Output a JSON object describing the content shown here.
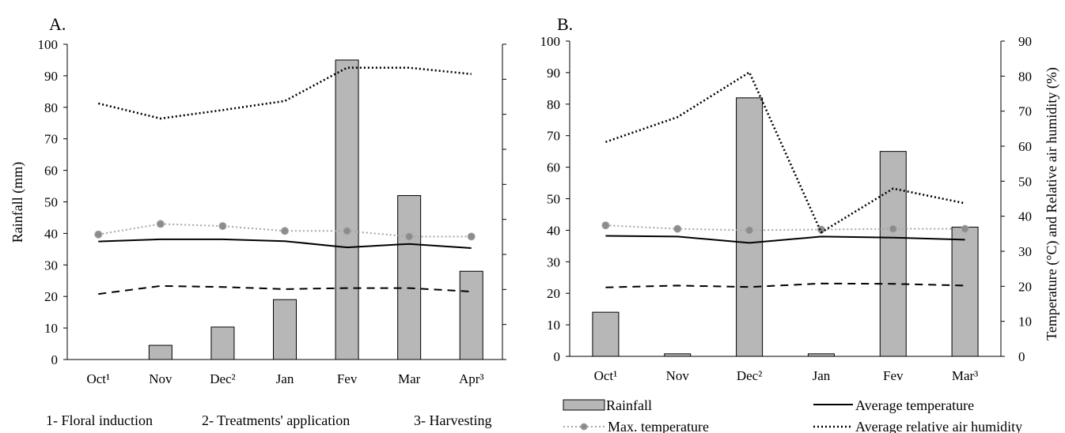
{
  "chart_data": [
    {
      "id": "A",
      "type": "bar+line",
      "panel_label": "A.",
      "categories": [
        "Oct¹",
        "Nov",
        "Dec²",
        "Jan",
        "Fev",
        "Mar",
        "Apr³"
      ],
      "ylabel": "Rainfall (mm)",
      "ylim": [
        0,
        100
      ],
      "yticks": [
        0,
        10,
        20,
        30,
        40,
        50,
        60,
        70,
        80,
        90,
        100
      ],
      "y2lim": [
        0,
        90
      ],
      "grid": false,
      "series": [
        {
          "name": "Rainfall",
          "type": "bar",
          "axis": "left",
          "values": [
            0,
            4.5,
            10.3,
            19,
            95,
            52,
            28
          ]
        },
        {
          "name": "Average temperature",
          "type": "line",
          "style": "solid",
          "axis": "right",
          "values": [
            33.7,
            34.3,
            34.3,
            33.8,
            32.0,
            33.0,
            31.8
          ]
        },
        {
          "name": "Max. temperature",
          "type": "line",
          "style": "dotted-marker",
          "axis": "right",
          "values": [
            35.7,
            38.7,
            38.1,
            36.7,
            36.7,
            35.1,
            35.1
          ]
        },
        {
          "name": "",
          "type": "line",
          "style": "dashed",
          "axis": "right",
          "values": [
            18.7,
            21.0,
            20.7,
            20.1,
            20.4,
            20.4,
            19.4
          ]
        },
        {
          "name": "Average relative air humidity",
          "type": "line",
          "style": "dotted",
          "axis": "right",
          "values": [
            73.1,
            68.8,
            71.2,
            73.8,
            83.3,
            83.3,
            81.5
          ]
        }
      ]
    },
    {
      "id": "B",
      "type": "bar+line",
      "panel_label": "B.",
      "categories": [
        "Oct¹",
        "Nov",
        "Dec²",
        "Jan",
        "Fev",
        "Mar³"
      ],
      "ylim": [
        0,
        100
      ],
      "yticks": [
        0,
        10,
        20,
        30,
        40,
        50,
        60,
        70,
        80,
        90,
        100
      ],
      "y2label": "Temperature (°C) and Relative air humidity (%)",
      "y2lim": [
        0,
        90
      ],
      "y2ticks": [
        0,
        10,
        20,
        30,
        40,
        50,
        60,
        70,
        80,
        90
      ],
      "grid": false,
      "series": [
        {
          "name": "Rainfall",
          "type": "bar",
          "axis": "left",
          "values": [
            14,
            0.8,
            82,
            0.8,
            65,
            41
          ]
        },
        {
          "name": "Average temperature",
          "type": "line",
          "style": "solid",
          "axis": "right",
          "values": [
            34.4,
            34.2,
            32.4,
            34.2,
            33.9,
            33.3
          ]
        },
        {
          "name": "Max. temperature",
          "type": "line",
          "style": "dotted-marker",
          "axis": "right",
          "values": [
            37.4,
            36.4,
            36.0,
            36.2,
            36.4,
            36.4
          ]
        },
        {
          "name": "",
          "type": "line",
          "style": "dashed",
          "axis": "right",
          "values": [
            19.7,
            20.2,
            19.8,
            20.8,
            20.7,
            20.2
          ]
        },
        {
          "name": "Average relative air humidity",
          "type": "line",
          "style": "dotted",
          "axis": "right",
          "values": [
            61.2,
            68.3,
            81.1,
            35.4,
            47.9,
            43.7
          ]
        }
      ]
    }
  ],
  "footnotes": [
    "1- Floral induction",
    "2- Treatments' application",
    "3- Harvesting"
  ],
  "legend": [
    {
      "label": "Rainfall",
      "style": "bar"
    },
    {
      "label": "Average temperature",
      "style": "solid"
    },
    {
      "label": "Max. temperature",
      "style": "dotted-marker"
    },
    {
      "label": "Average relative air humidity",
      "style": "dotted"
    }
  ],
  "colors": {
    "bar_fill": "#b7b7b7",
    "bar_stroke": "#000000",
    "line": "#000000",
    "max_temp_line": "#a6a6a6",
    "max_temp_marker": "#8c8c8c"
  }
}
